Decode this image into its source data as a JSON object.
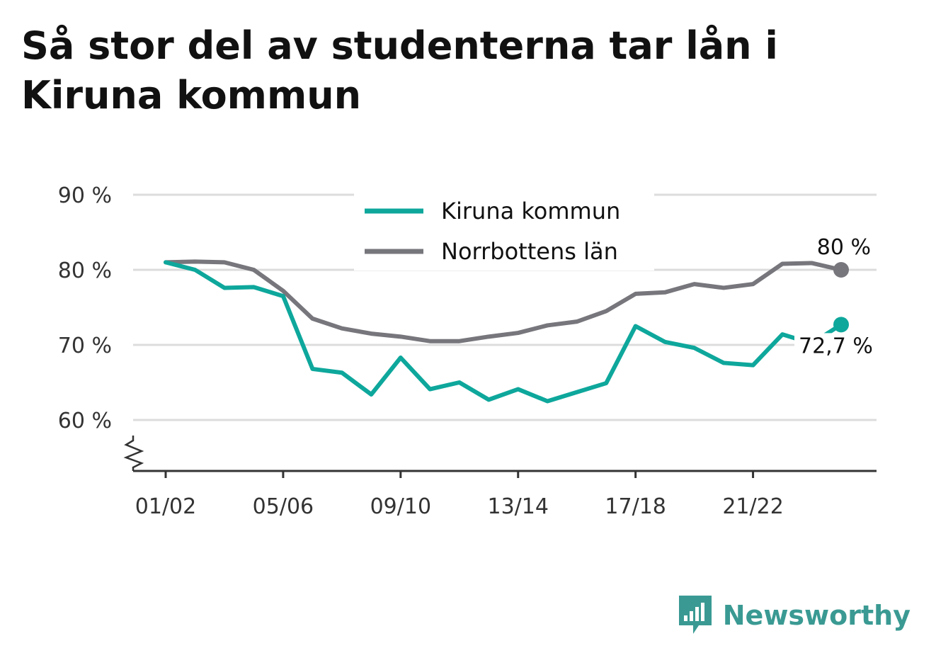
{
  "title": "Så stor del av studenterna tar lån i Kiruna kommun",
  "brand": {
    "name": "Newsworthy",
    "icon": "bar-chart-logo-icon",
    "color": "#3a9a93"
  },
  "chart_data": {
    "type": "line",
    "title": "Så stor del av studenterna tar lån i Kiruna kommun",
    "x": [
      "01/02",
      "02/03",
      "03/04",
      "04/05",
      "05/06",
      "06/07",
      "07/08",
      "08/09",
      "09/10",
      "10/11",
      "11/12",
      "12/13",
      "13/14",
      "14/15",
      "15/16",
      "16/17",
      "17/18",
      "18/19",
      "19/20",
      "20/21",
      "21/22",
      "22/23",
      "23/24",
      "24/25"
    ],
    "x_ticks": [
      "01/02",
      "05/06",
      "09/10",
      "13/14",
      "17/18",
      "21/22"
    ],
    "ylim": [
      53,
      90
    ],
    "y_ticks": [
      60,
      70,
      80,
      90
    ],
    "y_tick_labels": [
      "60 %",
      "70 %",
      "80 %",
      "90 %"
    ],
    "grid": true,
    "legend_position": "top-center",
    "series": [
      {
        "name": "Kiruna kommun",
        "color": "#0ea79c",
        "values": [
          81.0,
          80.0,
          77.6,
          77.7,
          76.5,
          66.8,
          66.3,
          63.4,
          68.3,
          64.1,
          65.0,
          62.7,
          64.1,
          62.5,
          63.7,
          64.9,
          72.5,
          70.4,
          69.6,
          67.6,
          67.3,
          71.4,
          70.2,
          72.7
        ],
        "end_label": "72,7 %"
      },
      {
        "name": "Norrbottens län",
        "color": "#76767c",
        "values": [
          81.0,
          81.1,
          81.0,
          80.0,
          77.2,
          73.5,
          72.2,
          71.5,
          71.1,
          70.5,
          70.5,
          71.1,
          71.6,
          72.6,
          73.1,
          74.5,
          76.8,
          77.0,
          78.1,
          77.6,
          78.1,
          80.8,
          80.9,
          80.0
        ],
        "end_label": "80 %"
      }
    ]
  }
}
